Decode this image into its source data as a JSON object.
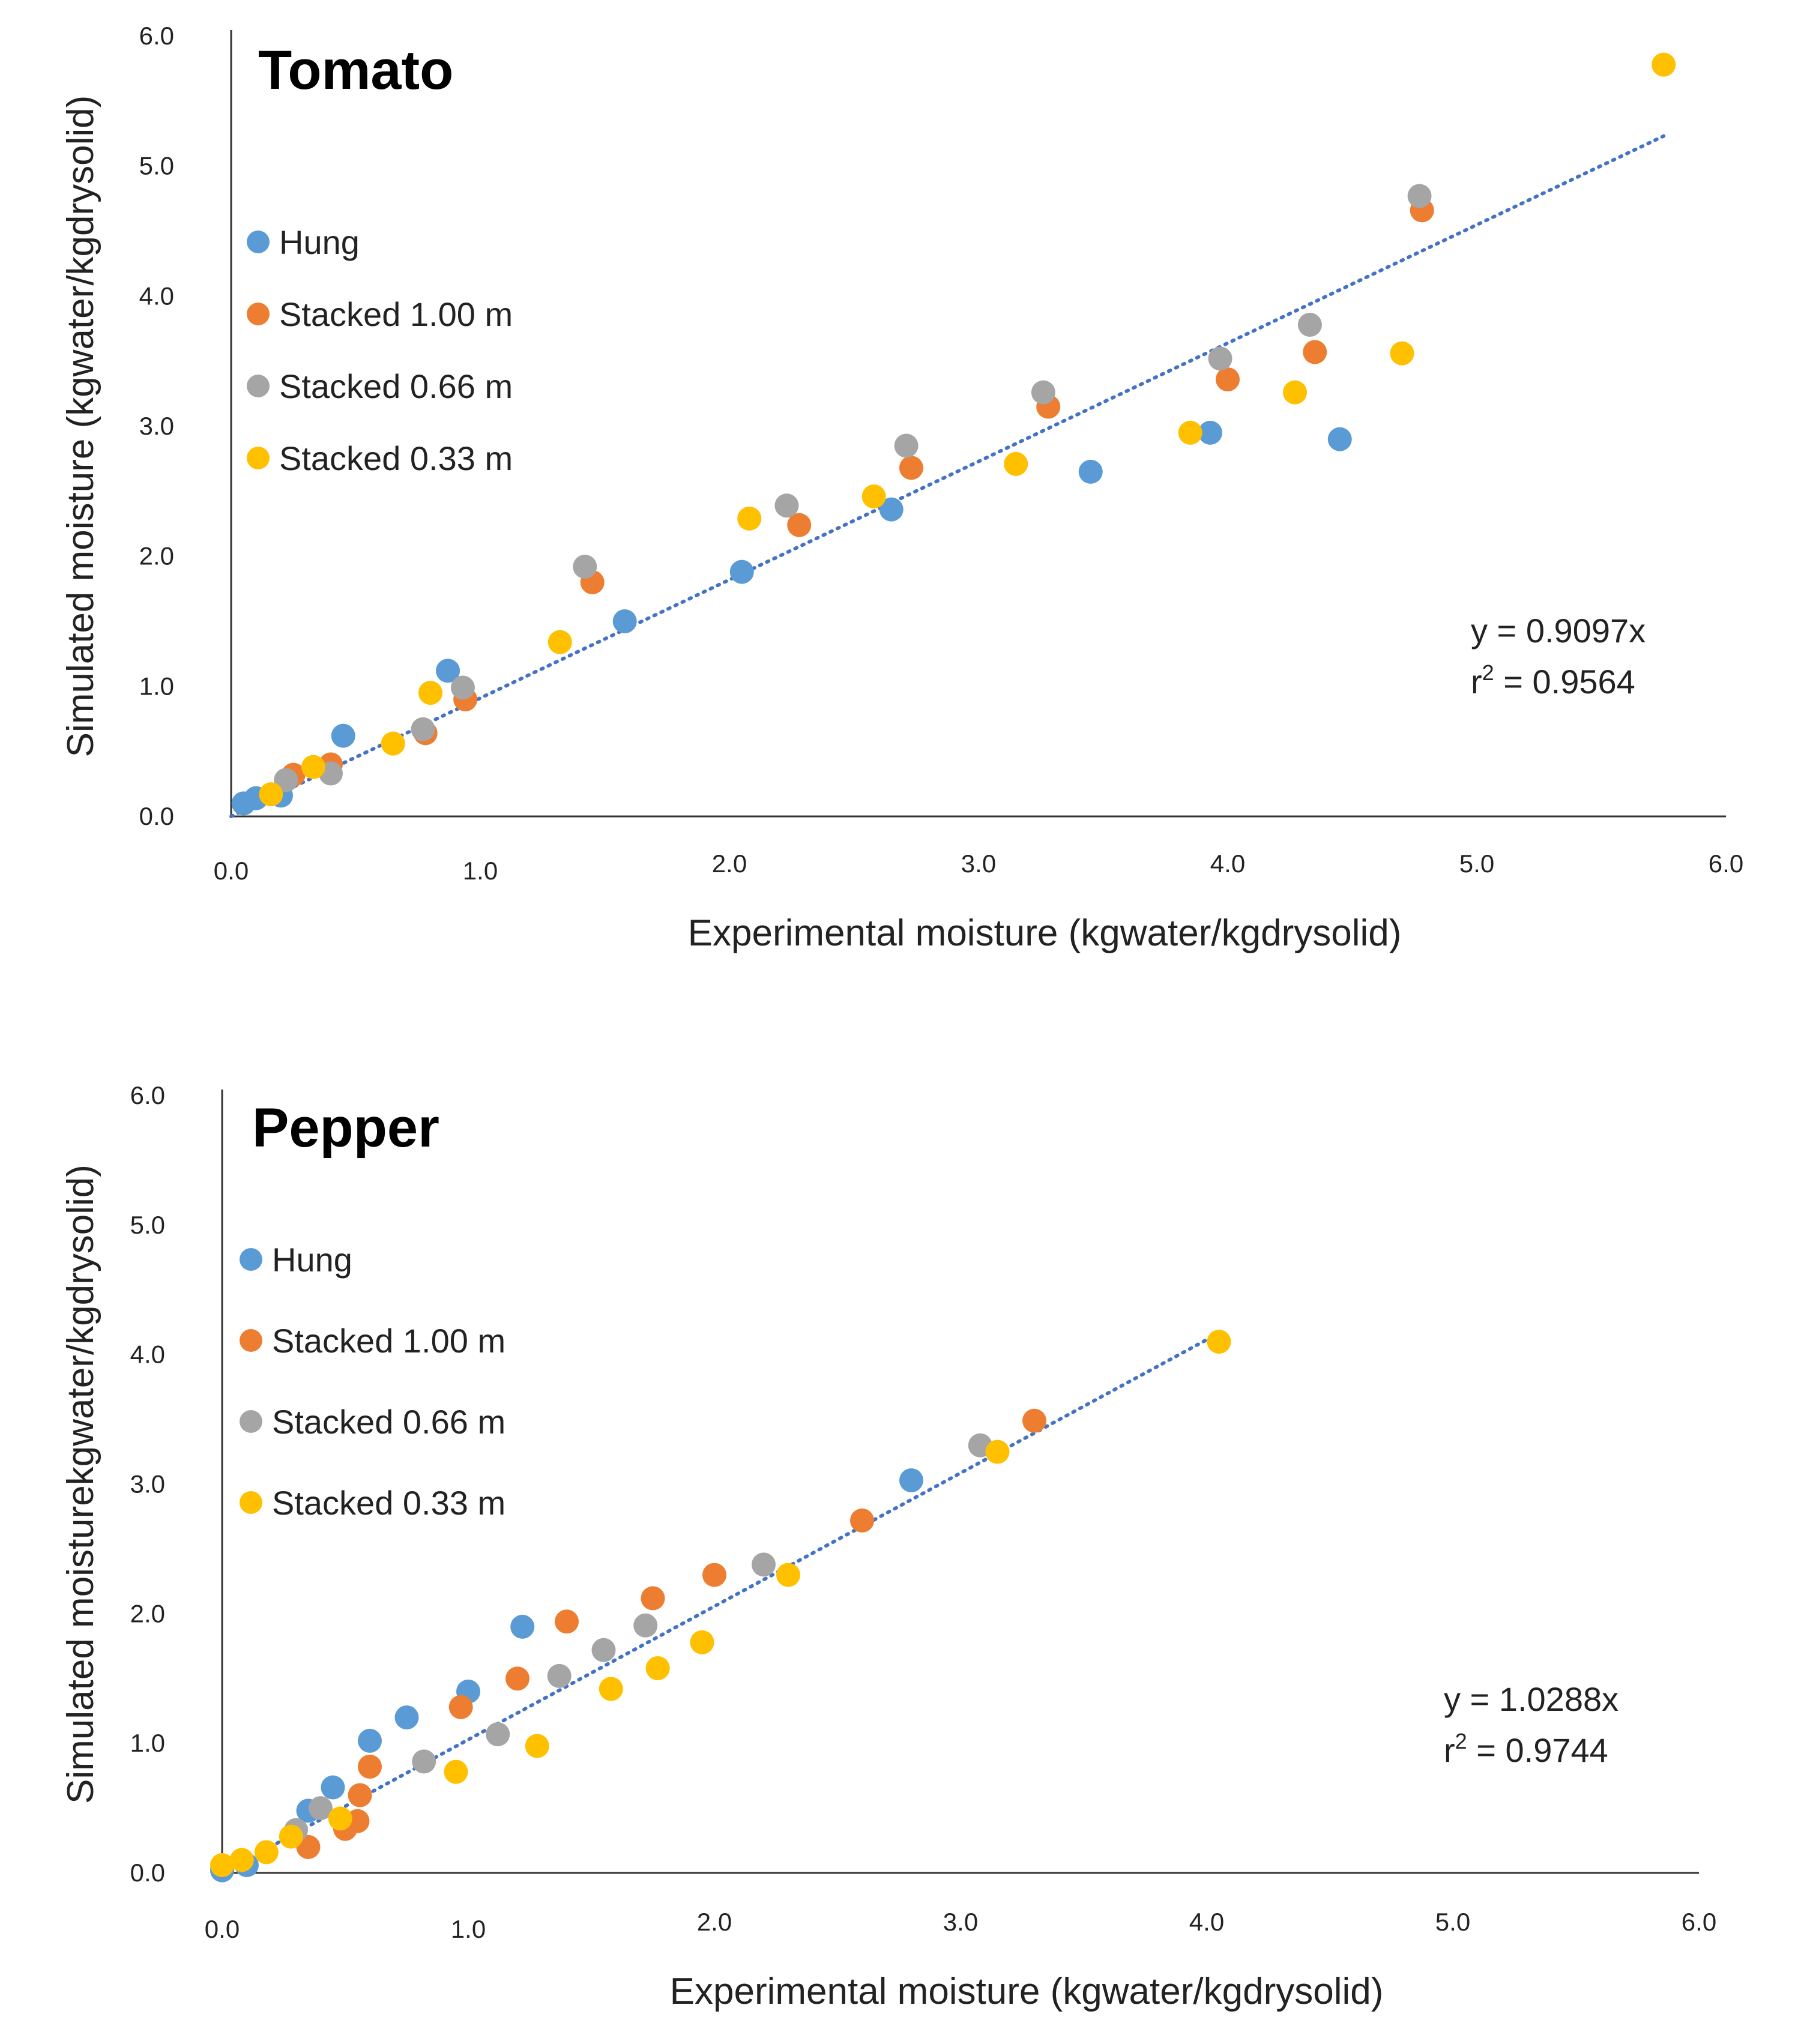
{
  "chart_data": [
    {
      "type": "scatter",
      "title": "Tomato",
      "xlabel": "Experimental moisture (kgwater/kgdrysolid)",
      "ylabel": "Simulated moisture (kgwater/kgdrysolid)",
      "xlim": [
        0,
        6
      ],
      "ylim": [
        0,
        6
      ],
      "xticks": [
        "0.0",
        "1.0",
        "2.0",
        "3.0",
        "4.0",
        "5.0",
        "6.0"
      ],
      "yticks": [
        "0.0",
        "1.0",
        "2.0",
        "3.0",
        "4.0",
        "5.0",
        "6.0"
      ],
      "legend_position": "upper-left",
      "series": [
        {
          "name": "Hung",
          "color": "#5B9BD5",
          "points": [
            [
              0.05,
              0.1
            ],
            [
              0.1,
              0.14
            ],
            [
              0.2,
              0.16
            ],
            [
              0.45,
              0.62
            ],
            [
              0.87,
              1.12
            ],
            [
              1.58,
              1.5
            ],
            [
              2.05,
              1.88
            ],
            [
              2.65,
              2.36
            ],
            [
              3.45,
              2.65
            ],
            [
              3.93,
              2.95
            ],
            [
              4.45,
              2.9
            ]
          ]
        },
        {
          "name": "Stacked 1.00 m",
          "color": "#ED7D31",
          "points": [
            [
              0.25,
              0.32
            ],
            [
              0.4,
              0.4
            ],
            [
              0.78,
              0.64
            ],
            [
              0.94,
              0.9
            ],
            [
              1.45,
              1.8
            ],
            [
              2.28,
              2.24
            ],
            [
              2.73,
              2.68
            ],
            [
              3.28,
              3.15
            ],
            [
              4.0,
              3.36
            ],
            [
              4.35,
              3.57
            ],
            [
              4.78,
              4.66
            ]
          ]
        },
        {
          "name": "Stacked 0.66 m",
          "color": "#A5A5A5",
          "points": [
            [
              0.22,
              0.28
            ],
            [
              0.4,
              0.33
            ],
            [
              0.77,
              0.67
            ],
            [
              0.93,
              0.99
            ],
            [
              1.42,
              1.92
            ],
            [
              2.23,
              2.39
            ],
            [
              2.71,
              2.85
            ],
            [
              3.26,
              3.26
            ],
            [
              3.97,
              3.52
            ],
            [
              4.33,
              3.78
            ],
            [
              4.77,
              4.77
            ]
          ]
        },
        {
          "name": "Stacked 0.33 m",
          "color": "#FFC000",
          "points": [
            [
              0.16,
              0.17
            ],
            [
              0.33,
              0.38
            ],
            [
              0.65,
              0.56
            ],
            [
              0.8,
              0.95
            ],
            [
              1.32,
              1.34
            ],
            [
              2.08,
              2.29
            ],
            [
              2.58,
              2.46
            ],
            [
              3.15,
              2.71
            ],
            [
              3.85,
              2.95
            ],
            [
              4.27,
              3.26
            ],
            [
              4.7,
              3.56
            ],
            [
              5.75,
              5.78
            ]
          ]
        }
      ],
      "trendline": {
        "slope": 0.9097,
        "x_end": 5.75
      },
      "equation": "y = 0.9097x",
      "r2_prefix": "r",
      "r2_exponent": "2",
      "r2_value": " = 0.9564"
    },
    {
      "type": "scatter",
      "title": "Pepper",
      "xlabel": "Experimental moisture (kgwater/kgdrysolid)",
      "ylabel": "Simulated moisturekgwater/kgdrysolid)",
      "xlim": [
        0,
        6
      ],
      "ylim": [
        0,
        6
      ],
      "xticks": [
        "0.0",
        "1.0",
        "2.0",
        "3.0",
        "4.0",
        "5.0",
        "6.0"
      ],
      "yticks": [
        "0.0",
        "1.0",
        "2.0",
        "3.0",
        "4.0",
        "5.0",
        "6.0"
      ],
      "legend_position": "upper-left",
      "series": [
        {
          "name": "Hung",
          "color": "#5B9BD5",
          "points": [
            [
              0.0,
              0.02
            ],
            [
              0.1,
              0.06
            ],
            [
              0.35,
              0.48
            ],
            [
              0.45,
              0.66
            ],
            [
              0.6,
              1.02
            ],
            [
              0.75,
              1.2
            ],
            [
              1.0,
              1.4
            ],
            [
              1.22,
              1.9
            ],
            [
              2.8,
              3.03
            ]
          ]
        },
        {
          "name": "Stacked 1.00 m",
          "color": "#ED7D31",
          "points": [
            [
              0.35,
              0.2
            ],
            [
              0.5,
              0.34
            ],
            [
              0.55,
              0.4
            ],
            [
              0.56,
              0.6
            ],
            [
              0.6,
              0.82
            ],
            [
              0.97,
              1.28
            ],
            [
              1.2,
              1.5
            ],
            [
              1.4,
              1.94
            ],
            [
              1.75,
              2.12
            ],
            [
              2.0,
              2.3
            ],
            [
              2.6,
              2.72
            ],
            [
              3.3,
              3.49
            ]
          ]
        },
        {
          "name": "Stacked 0.66 m",
          "color": "#A5A5A5",
          "points": [
            [
              0.3,
              0.33
            ],
            [
              0.4,
              0.5
            ],
            [
              0.82,
              0.86
            ],
            [
              1.12,
              1.07
            ],
            [
              1.37,
              1.52
            ],
            [
              1.55,
              1.72
            ],
            [
              1.72,
              1.91
            ],
            [
              2.2,
              2.38
            ],
            [
              3.08,
              3.3
            ]
          ]
        },
        {
          "name": "Stacked 0.33 m",
          "color": "#FFC000",
          "points": [
            [
              0.0,
              0.06
            ],
            [
              0.08,
              0.1
            ],
            [
              0.18,
              0.16
            ],
            [
              0.28,
              0.28
            ],
            [
              0.48,
              0.42
            ],
            [
              0.95,
              0.78
            ],
            [
              1.28,
              0.98
            ],
            [
              1.58,
              1.42
            ],
            [
              1.77,
              1.58
            ],
            [
              1.95,
              1.78
            ],
            [
              2.3,
              2.3
            ],
            [
              3.15,
              3.25
            ],
            [
              4.05,
              4.1
            ]
          ]
        }
      ],
      "trendline": {
        "slope": 1.0288,
        "x_end": 4.05
      },
      "equation": "y = 1.0288x",
      "r2_prefix": "r",
      "r2_exponent": "2",
      "r2_value": " = 0.9744"
    }
  ]
}
